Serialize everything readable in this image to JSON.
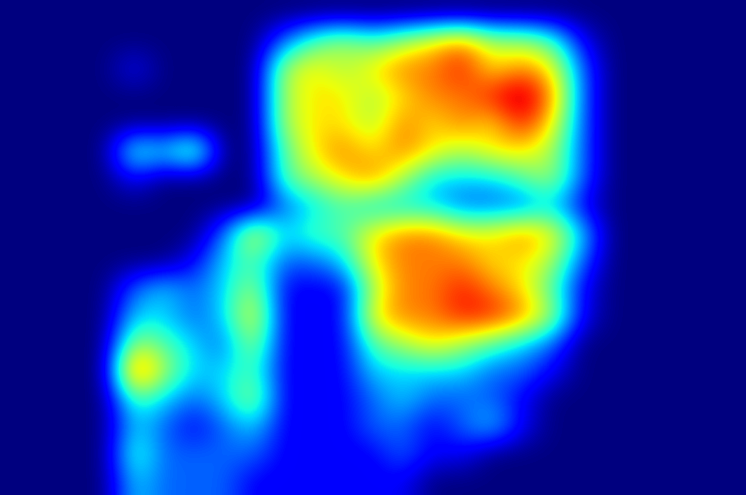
{
  "chart_data": {
    "type": "heatmap",
    "tick_labels": false,
    "cells": [
      [
        0,
        0,
        0,
        0,
        0,
        0,
        0,
        0,
        0,
        0,
        0,
        0,
        0,
        0,
        0,
        0,
        0,
        0,
        0,
        0,
        0,
        0,
        0,
        0,
        0
      ],
      [
        0,
        0,
        0,
        0,
        0,
        0,
        0,
        0,
        0,
        2,
        4,
        5,
        4,
        5,
        6,
        7,
        5,
        5,
        4,
        1,
        0,
        0,
        0,
        0,
        0
      ],
      [
        0,
        0,
        0,
        0,
        1,
        0,
        0,
        0,
        0,
        5,
        6,
        5,
        6,
        7,
        7,
        8,
        6,
        7,
        6,
        2,
        0,
        0,
        0,
        0,
        0
      ],
      [
        0,
        0,
        0,
        0,
        0,
        0,
        0,
        0,
        0,
        5,
        6,
        6,
        5,
        6,
        7,
        7,
        8,
        9,
        7,
        2,
        0,
        0,
        0,
        0,
        0
      ],
      [
        0,
        0,
        0,
        0,
        0,
        0,
        0,
        0,
        0,
        5,
        6,
        6,
        5,
        7,
        6,
        7,
        6,
        8,
        6,
        2,
        0,
        0,
        0,
        0,
        0
      ],
      [
        0,
        0,
        0,
        0,
        4,
        3,
        5,
        0,
        0,
        4,
        6,
        7,
        6,
        7,
        6,
        5,
        6,
        6,
        5,
        2,
        0,
        0,
        0,
        0,
        0
      ],
      [
        0,
        0,
        0,
        0,
        1,
        0,
        0,
        0,
        0,
        4,
        5,
        6,
        7,
        5,
        3,
        3,
        3,
        4,
        5,
        2,
        0,
        0,
        0,
        0,
        0
      ],
      [
        0,
        0,
        0,
        0,
        0,
        0,
        0,
        0,
        0,
        2,
        3,
        4,
        3,
        3,
        3,
        2,
        2,
        2,
        3,
        1,
        0,
        0,
        0,
        0,
        0
      ],
      [
        0,
        0,
        0,
        0,
        0,
        0,
        0,
        2,
        6,
        3,
        4,
        4,
        6,
        7,
        7,
        6,
        6,
        7,
        6,
        3,
        0,
        0,
        0,
        0,
        0
      ],
      [
        0,
        0,
        0,
        0,
        0,
        0,
        1,
        3,
        4,
        2,
        2,
        3,
        6,
        7,
        7,
        7,
        6,
        6,
        5,
        2,
        0,
        0,
        0,
        0,
        0
      ],
      [
        0,
        0,
        0,
        0,
        2,
        3,
        2,
        3,
        5,
        1,
        1,
        1,
        5,
        7,
        7,
        8,
        7,
        6,
        4,
        1,
        0,
        0,
        0,
        0,
        0
      ],
      [
        0,
        0,
        0,
        0,
        3,
        3,
        2,
        3,
        6,
        1,
        1,
        1,
        6,
        7,
        7,
        8,
        8,
        7,
        5,
        1,
        0,
        0,
        0,
        0,
        0
      ],
      [
        0,
        0,
        0,
        0,
        5,
        4,
        3,
        2,
        5,
        1,
        1,
        1,
        4,
        5,
        6,
        5,
        4,
        3,
        2,
        0,
        0,
        0,
        0,
        0,
        0
      ],
      [
        0,
        0,
        0,
        0,
        8,
        5,
        3,
        3,
        4,
        1,
        1,
        1,
        3,
        3,
        3,
        3,
        2,
        2,
        1,
        0,
        0,
        0,
        0,
        0,
        0
      ],
      [
        0,
        0,
        0,
        0,
        4,
        3,
        2,
        3,
        5,
        1,
        1,
        1,
        2,
        3,
        2,
        2,
        2,
        1,
        0,
        0,
        0,
        0,
        0,
        0,
        0
      ],
      [
        0,
        0,
        0,
        0,
        3,
        2,
        1,
        2,
        3,
        1,
        1,
        1,
        2,
        2,
        1,
        2,
        3,
        1,
        0,
        0,
        0,
        0,
        0,
        0,
        0
      ],
      [
        0,
        0,
        0,
        0,
        4,
        2,
        2,
        2,
        2,
        1,
        1,
        1,
        1,
        2,
        1,
        1,
        0,
        0,
        0,
        0,
        0,
        0,
        0,
        0,
        0
      ],
      [
        0,
        0,
        0,
        0,
        3,
        2,
        2,
        2,
        1,
        1,
        1,
        1,
        1,
        1,
        0,
        0,
        0,
        0,
        0,
        0,
        0,
        0,
        0,
        0,
        0
      ]
    ]
  }
}
